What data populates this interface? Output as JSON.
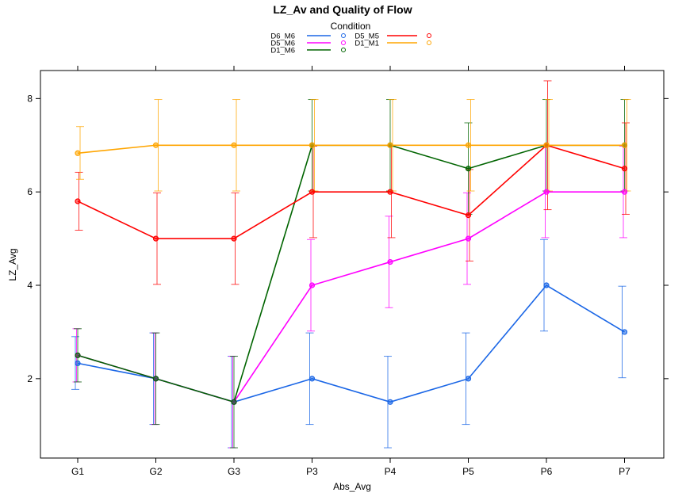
{
  "chart_data": {
    "type": "line",
    "title": "LZ_Av and Quality of Flow",
    "xlabel": "Abs_Avg",
    "ylabel": "LZ_Avg",
    "legend_title": "Condition",
    "legend_placement": "top-center",
    "categories": [
      "G1",
      "G2",
      "G3",
      "P3",
      "P4",
      "P5",
      "P6",
      "P7"
    ],
    "yticks": [
      2,
      4,
      6,
      8
    ],
    "ylim": [
      0.3,
      8.6
    ],
    "grid": false,
    "series": [
      {
        "name": "D6_M6",
        "color": "#1a66e6",
        "values": [
          2.33,
          2.0,
          1.5,
          2.0,
          1.5,
          2.0,
          4.0,
          3.0
        ],
        "err_low": [
          1.77,
          1.02,
          0.52,
          1.02,
          0.52,
          1.02,
          3.02,
          2.02
        ],
        "err_high": [
          2.9,
          2.98,
          2.48,
          2.98,
          2.48,
          2.98,
          4.98,
          3.98
        ]
      },
      {
        "name": "D5_M6",
        "color": "#ff00ff",
        "values": [
          2.5,
          2.0,
          1.5,
          4.0,
          4.5,
          5.0,
          6.0,
          6.0
        ],
        "err_low": [
          1.93,
          1.02,
          0.52,
          3.02,
          3.52,
          4.02,
          5.02,
          5.02
        ],
        "err_high": [
          3.07,
          2.98,
          2.48,
          4.98,
          5.48,
          5.98,
          6.98,
          6.98
        ]
      },
      {
        "name": "D1_M6",
        "color": "#006400",
        "values": [
          2.5,
          2.0,
          1.5,
          7.0,
          7.0,
          6.5,
          7.0,
          7.0
        ],
        "err_low": [
          1.93,
          1.02,
          0.52,
          6.02,
          6.02,
          5.52,
          6.02,
          6.02
        ],
        "err_high": [
          3.07,
          2.98,
          2.48,
          7.98,
          7.98,
          7.48,
          7.98,
          7.98
        ]
      },
      {
        "name": "D5_M5",
        "color": "#ff0000",
        "values": [
          5.8,
          5.0,
          5.0,
          6.0,
          6.0,
          5.5,
          7.0,
          6.5
        ],
        "err_low": [
          5.18,
          4.02,
          4.02,
          5.02,
          5.02,
          4.52,
          5.62,
          5.52
        ],
        "err_high": [
          6.42,
          5.98,
          5.98,
          6.98,
          6.98,
          6.48,
          8.38,
          7.48
        ]
      },
      {
        "name": "D1_M1",
        "color": "#ffa500",
        "values": [
          6.83,
          7.0,
          7.0,
          7.0,
          7.0,
          7.0,
          7.0,
          7.0
        ],
        "err_low": [
          6.27,
          6.02,
          6.02,
          6.02,
          6.02,
          6.02,
          6.02,
          6.02
        ],
        "err_high": [
          7.4,
          7.98,
          7.98,
          7.98,
          7.98,
          7.98,
          7.98,
          7.98
        ]
      }
    ]
  }
}
